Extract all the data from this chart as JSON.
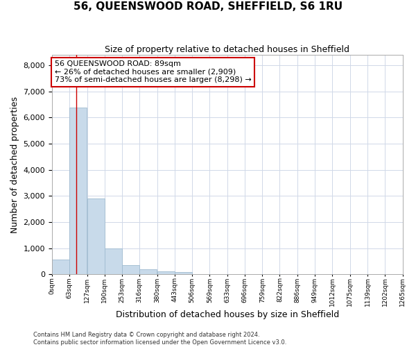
{
  "title": "56, QUEENSWOOD ROAD, SHEFFIELD, S6 1RU",
  "subtitle": "Size of property relative to detached houses in Sheffield",
  "xlabel": "Distribution of detached houses by size in Sheffield",
  "ylabel": "Number of detached properties",
  "bar_color": "#c8daea",
  "bar_edge_color": "#a0bcd0",
  "grid_color": "#d0d8e8",
  "bg_color": "#ffffff",
  "property_line_x": 89,
  "annotation_line1": "56 QUEENSWOOD ROAD: 89sqm",
  "annotation_line2": "← 26% of detached houses are smaller (2,909)",
  "annotation_line3": "73% of semi-detached houses are larger (8,298) →",
  "footer_line1": "Contains HM Land Registry data © Crown copyright and database right 2024.",
  "footer_line2": "Contains public sector information licensed under the Open Government Licence v3.0.",
  "bin_edges": [
    0,
    63,
    127,
    190,
    253,
    316,
    380,
    443,
    506,
    569,
    633,
    696,
    759,
    822,
    886,
    949,
    1012,
    1075,
    1139,
    1202,
    1265
  ],
  "bin_labels": [
    "0sqm",
    "63sqm",
    "127sqm",
    "190sqm",
    "253sqm",
    "316sqm",
    "380sqm",
    "443sqm",
    "506sqm",
    "569sqm",
    "633sqm",
    "696sqm",
    "759sqm",
    "822sqm",
    "886sqm",
    "949sqm",
    "1012sqm",
    "1075sqm",
    "1139sqm",
    "1202sqm",
    "1265sqm"
  ],
  "bar_heights": [
    560,
    6390,
    2910,
    980,
    360,
    180,
    100,
    80,
    0,
    0,
    0,
    0,
    0,
    0,
    0,
    0,
    0,
    0,
    0,
    0
  ],
  "ylim_max": 8400,
  "yticks": [
    0,
    1000,
    2000,
    3000,
    4000,
    5000,
    6000,
    7000,
    8000
  ],
  "title_fontsize": 11,
  "subtitle_fontsize": 9,
  "ylabel_fontsize": 9,
  "xlabel_fontsize": 9,
  "ytick_fontsize": 8,
  "xtick_fontsize": 6.5,
  "footer_fontsize": 6,
  "ann_fontsize": 8
}
